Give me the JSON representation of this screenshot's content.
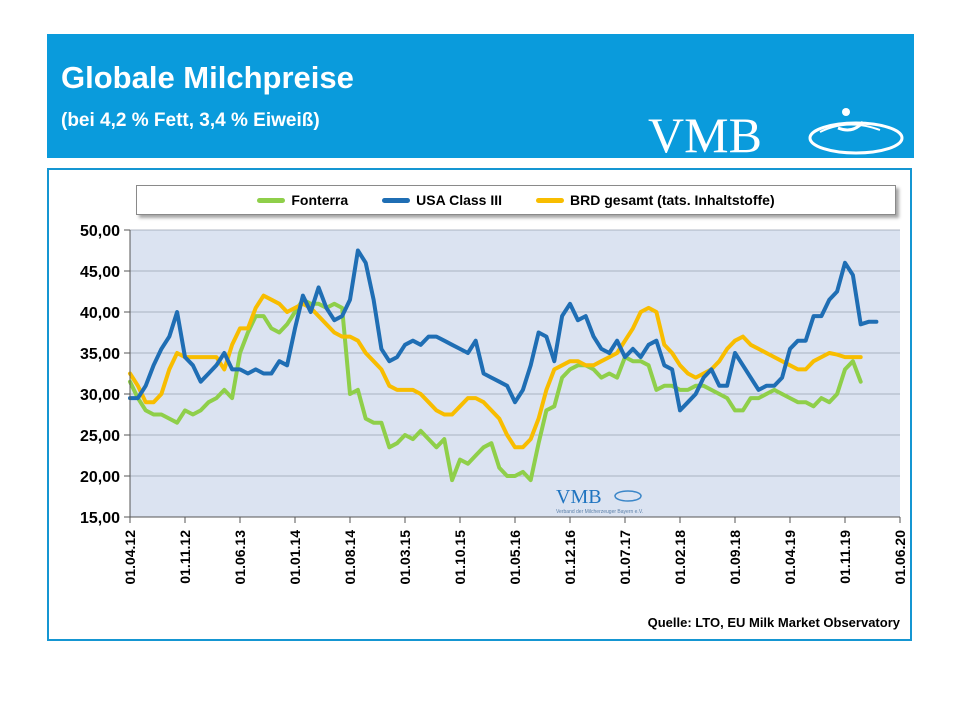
{
  "header": {
    "title": "Globale Milchpreise",
    "subtitle": "(bei 4,2 % Fett, 3,4 % Eiweiß)",
    "logo_text": "VMB"
  },
  "watermark": {
    "logo_text": "VMB",
    "tagline": "Verband der Milcherzeuger Bayern e.V."
  },
  "source": "Quelle:  LTO, EU Milk Market Observatory",
  "colors": {
    "header_bg": "#0a9bdc",
    "plot_bg": "#dbe3f1",
    "fonterra": "#8fcf4a",
    "usa": "#1f6eb4",
    "brd": "#f8bd00"
  },
  "chart_data": {
    "type": "line",
    "title": "Globale Milchpreise",
    "ylim": [
      15,
      50
    ],
    "yticks": [
      "15,00",
      "20,00",
      "25,00",
      "30,00",
      "35,00",
      "40,00",
      "45,00",
      "50,00"
    ],
    "ytick_values": [
      15,
      20,
      25,
      30,
      35,
      40,
      45,
      50
    ],
    "xlim": [
      0,
      98
    ],
    "xticks": [
      "01.04.12",
      "01.11.12",
      "01.06.13",
      "01.01.14",
      "01.08.14",
      "01.03.15",
      "01.10.15",
      "01.05.16",
      "01.12.16",
      "01.07.17",
      "01.02.18",
      "01.09.18",
      "01.04.19",
      "01.11.19",
      "01.06.20"
    ],
    "xtick_positions": [
      0,
      7,
      14,
      21,
      28,
      35,
      42,
      49,
      56,
      63,
      70,
      77,
      84,
      91,
      98
    ],
    "grid": "horizontal",
    "legend_position": "top",
    "series": [
      {
        "name": "Fonterra",
        "color": "#8fcf4a",
        "x": [
          0,
          1,
          2,
          3,
          4,
          5,
          6,
          7,
          8,
          9,
          10,
          11,
          12,
          13,
          14,
          15,
          16,
          17,
          18,
          19,
          20,
          21,
          22,
          23,
          24,
          25,
          26,
          27,
          28,
          29,
          30,
          31,
          32,
          33,
          34,
          35,
          36,
          37,
          38,
          39,
          40,
          41,
          42,
          43,
          44,
          45,
          46,
          47,
          48,
          49,
          50,
          51,
          52,
          53,
          54,
          55,
          56,
          57,
          58,
          59,
          60,
          61,
          62,
          63,
          64,
          65,
          66,
          67,
          68,
          69,
          70,
          71,
          72,
          73,
          74,
          75,
          76,
          77,
          78,
          79,
          80,
          81,
          82,
          83,
          84,
          85,
          86,
          87,
          88,
          89,
          90,
          91,
          92,
          93
        ],
        "values": [
          31.5,
          29.5,
          28,
          27.5,
          27.5,
          27,
          26.5,
          28,
          27.5,
          28,
          29,
          29.5,
          30.5,
          29.5,
          35,
          37.5,
          39.5,
          39.5,
          38,
          37.5,
          38.5,
          40,
          41.5,
          41,
          41,
          40.5,
          41,
          40.5,
          30,
          30.5,
          27,
          26.5,
          26.5,
          23.5,
          24,
          25,
          24.5,
          25.5,
          24.5,
          23.5,
          24.5,
          19.5,
          22,
          21.5,
          22.5,
          23.5,
          24,
          21,
          20,
          20,
          20.5,
          19.5,
          24,
          28,
          28.5,
          32,
          33,
          33.5,
          33.5,
          33,
          32,
          32.5,
          32,
          34.5,
          34,
          34,
          33.5,
          30.5,
          31,
          31,
          30.5,
          30.5,
          31,
          31,
          30.5,
          30,
          29.5,
          28,
          28,
          29.5,
          29.5,
          30,
          30.5,
          30,
          29.5,
          29,
          29,
          28.5,
          29.5,
          29,
          30,
          33,
          34,
          31.5
        ]
      },
      {
        "name": "USA Class III",
        "color": "#1f6eb4",
        "x": [
          0,
          1,
          2,
          3,
          4,
          5,
          6,
          7,
          8,
          9,
          10,
          11,
          12,
          13,
          14,
          15,
          16,
          17,
          18,
          19,
          20,
          21,
          22,
          23,
          24,
          25,
          26,
          27,
          28,
          29,
          30,
          31,
          32,
          33,
          34,
          35,
          36,
          37,
          38,
          39,
          40,
          41,
          42,
          43,
          44,
          45,
          46,
          47,
          48,
          49,
          50,
          51,
          52,
          53,
          54,
          55,
          56,
          57,
          58,
          59,
          60,
          61,
          62,
          63,
          64,
          65,
          66,
          67,
          68,
          69,
          70,
          71,
          72,
          73,
          74,
          75,
          76,
          77,
          78,
          79,
          80,
          81,
          82,
          83,
          84,
          85,
          86,
          87,
          88,
          89,
          90,
          91,
          92,
          93,
          94,
          95
        ],
        "values": [
          29.5,
          29.5,
          31,
          33.5,
          35.5,
          37,
          40,
          34.5,
          33.5,
          31.5,
          32.5,
          33.5,
          35,
          33,
          33,
          32.5,
          33,
          32.5,
          32.5,
          34,
          33.5,
          38,
          42,
          40,
          43,
          40.5,
          39,
          39.5,
          41.5,
          47.5,
          46,
          41.5,
          35.5,
          34,
          34.5,
          36,
          36.5,
          36,
          37,
          37,
          36.5,
          36,
          35.5,
          35,
          36.5,
          32.5,
          32,
          31.5,
          31,
          29,
          30.5,
          33.5,
          37.5,
          37,
          34,
          39.5,
          41,
          39,
          39.5,
          37,
          35.5,
          35,
          36.5,
          34.5,
          35.5,
          34.5,
          36,
          36.5,
          33.5,
          33,
          28,
          29,
          30,
          32,
          33,
          31,
          31,
          35,
          33.5,
          32,
          30.5,
          31,
          31,
          32,
          35.5,
          36.5,
          36.5,
          39.5,
          39.5,
          41.5,
          42.5,
          46,
          44.5,
          38.5,
          38.8,
          38.8
        ]
      },
      {
        "name": "BRD gesamt (tats. Inhaltstoffe)",
        "color": "#f8bd00",
        "x": [
          0,
          1,
          2,
          3,
          4,
          5,
          6,
          7,
          8,
          9,
          10,
          11,
          12,
          13,
          14,
          15,
          16,
          17,
          18,
          19,
          20,
          21,
          22,
          23,
          24,
          25,
          26,
          27,
          28,
          29,
          30,
          31,
          32,
          33,
          34,
          35,
          36,
          37,
          38,
          39,
          40,
          41,
          42,
          43,
          44,
          45,
          46,
          47,
          48,
          49,
          50,
          51,
          52,
          53,
          54,
          55,
          56,
          57,
          58,
          59,
          60,
          61,
          62,
          63,
          64,
          65,
          66,
          67,
          68,
          69,
          70,
          71,
          72,
          73,
          74,
          75,
          76,
          77,
          78,
          79,
          80,
          81,
          82,
          83,
          84,
          85,
          86,
          87,
          88,
          89,
          90,
          91,
          92,
          93
        ],
        "values": [
          32.5,
          31,
          29,
          29,
          30,
          33,
          35,
          34.5,
          34.5,
          34.5,
          34.5,
          34.5,
          33,
          36,
          38,
          38,
          40.5,
          42,
          41.5,
          41,
          40,
          40.5,
          41,
          40.5,
          39.5,
          38.5,
          37.5,
          37,
          37,
          36.5,
          35,
          34,
          33,
          31,
          30.5,
          30.5,
          30.5,
          30,
          29,
          28,
          27.5,
          27.5,
          28.5,
          29.5,
          29.5,
          29,
          28,
          27,
          25,
          23.5,
          23.5,
          24.5,
          27,
          30.5,
          33,
          33.5,
          34,
          34,
          33.5,
          33.5,
          34,
          34.5,
          35,
          36.5,
          38,
          40,
          40.5,
          40,
          36,
          35,
          33.5,
          32.5,
          32,
          32.5,
          33,
          34,
          35.5,
          36.5,
          37,
          36,
          35.5,
          35,
          34.5,
          34,
          33.5,
          33,
          33,
          34,
          34.5,
          35,
          34.8,
          34.5,
          34.5,
          34.5
        ]
      }
    ]
  }
}
